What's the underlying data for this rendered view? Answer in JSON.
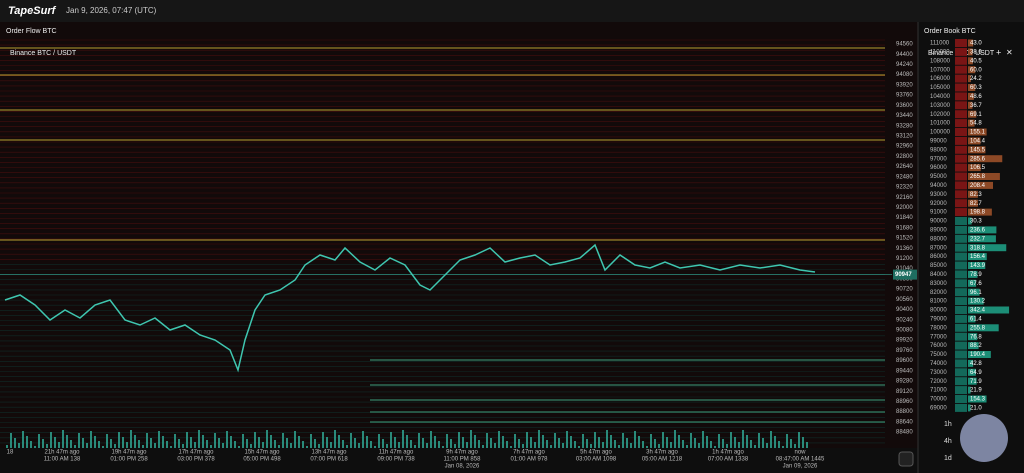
{
  "header": {
    "logo": "TapeSurf",
    "datetime": "Jan 9, 2026, 07:47 (UTC)"
  },
  "order_flow": {
    "title": "Order Flow BTC",
    "market": "Binance BTC / USDT",
    "price_ticks": [
      94560,
      94400,
      94240,
      94080,
      93920,
      93760,
      93600,
      93440,
      93280,
      93120,
      92960,
      92800,
      92640,
      92480,
      92320,
      92160,
      92000,
      91840,
      91680,
      91520,
      91360,
      91200,
      91040,
      90880,
      90720,
      90560,
      90400,
      90240,
      90080,
      89920,
      89760,
      89600,
      89440,
      89280,
      89120,
      88960,
      88800,
      88640,
      88480
    ],
    "current_price": 90947,
    "time_labels": [
      {
        "ago": "18"
      },
      {
        "ago": "21h 47m ago",
        "time": "11:00 AM 138"
      },
      {
        "ago": "19h 47m ago",
        "time": "01:00 PM 258"
      },
      {
        "ago": "17h 47m ago",
        "time": "03:00 PM 378"
      },
      {
        "ago": "15h 47m ago",
        "time": "05:00 PM 498"
      },
      {
        "ago": "13h 47m ago",
        "time": "07:00 PM 618"
      },
      {
        "ago": "11h 47m ago",
        "time": "09:00 PM 738"
      },
      {
        "ago": "9h 47m ago",
        "time": "11:00 PM 858",
        "date": "Jan 08, 2026"
      },
      {
        "ago": "7h 47m ago",
        "time": "01:00 AM 978"
      },
      {
        "ago": "5h 47m ago",
        "time": "03:00 AM 1098"
      },
      {
        "ago": "3h 47m ago",
        "time": "05:00 AM 1218"
      },
      {
        "ago": "1h 47m ago",
        "time": "07:00 AM 1338"
      },
      {
        "ago": "now",
        "time": "08:47:00 AM 1445",
        "date": "Jan 09, 2026"
      }
    ]
  },
  "order_book": {
    "title": "Order Book BTC",
    "market": "Binance BTC / USDT",
    "controls": [
      "+",
      "✕"
    ],
    "timeframes": [
      "1h",
      "4h",
      "1d"
    ],
    "rows": [
      [
        111000,
        "43.0"
      ],
      [
        110000,
        "38.6"
      ],
      [
        108000,
        "40.5"
      ],
      [
        107000,
        "60.0"
      ],
      [
        106000,
        "24.2"
      ],
      [
        105000,
        "60.3"
      ],
      [
        104000,
        "48.6"
      ],
      [
        103000,
        "36.7"
      ],
      [
        102000,
        "69.1"
      ],
      [
        101000,
        "54.8"
      ],
      [
        100000,
        "155.1"
      ],
      [
        99000,
        "104.4"
      ],
      [
        98000,
        "145.5"
      ],
      [
        97000,
        "285.6"
      ],
      [
        96000,
        "106.5"
      ],
      [
        95000,
        "265.8"
      ],
      [
        94000,
        "208.4"
      ],
      [
        93000,
        "82.3"
      ],
      [
        92000,
        "82.7"
      ],
      [
        91000,
        "198.8"
      ],
      [
        90000,
        "30.3"
      ],
      [
        89000,
        "236.6"
      ],
      [
        88000,
        "232.7"
      ],
      [
        87000,
        "318.8"
      ],
      [
        86000,
        "156.4"
      ],
      [
        85000,
        "143.9"
      ],
      [
        84000,
        "78.9"
      ],
      [
        83000,
        "67.6"
      ],
      [
        82000,
        "96.1"
      ],
      [
        81000,
        "130.2"
      ],
      [
        80000,
        "342.4"
      ],
      [
        79000,
        "61.4"
      ],
      [
        78000,
        "255.8"
      ],
      [
        77000,
        "76.8"
      ],
      [
        76000,
        "88.2"
      ],
      [
        75000,
        "190.4"
      ],
      [
        74000,
        "42.8"
      ],
      [
        73000,
        "64.9"
      ],
      [
        72000,
        "71.9"
      ],
      [
        71000,
        "21.9"
      ],
      [
        70000,
        "154.3"
      ],
      [
        69000,
        "21.0"
      ]
    ]
  }
}
